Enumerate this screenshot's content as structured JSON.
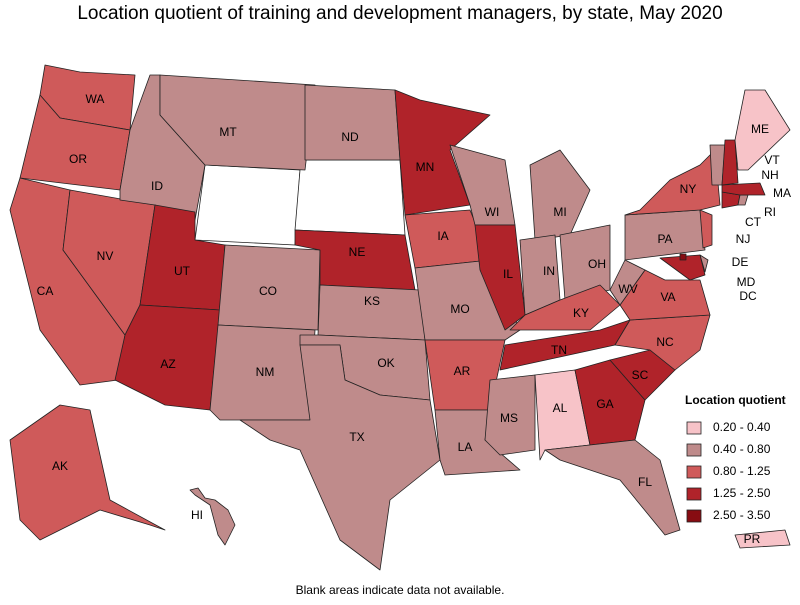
{
  "title": "Location quotient of training and development managers, by state, May 2020",
  "legend": {
    "title": "Location quotient",
    "items": [
      {
        "label": "0.20 - 0.40",
        "color": "#f7c3c8"
      },
      {
        "label": "0.40 - 0.80",
        "color": "#bf8b8b"
      },
      {
        "label": "0.80 - 1.25",
        "color": "#cf5a5a"
      },
      {
        "label": "1.25 - 2.50",
        "color": "#b0232a"
      },
      {
        "label": "2.50 - 3.50",
        "color": "#870c12"
      }
    ]
  },
  "states": [
    {
      "label": "WA",
      "color": "#cf5a5a"
    },
    {
      "label": "OR",
      "color": "#cf5a5a"
    },
    {
      "label": "CA",
      "color": "#cf5a5a"
    },
    {
      "label": "NV",
      "color": "#cf5a5a"
    },
    {
      "label": "ID",
      "color": "#bf8b8b"
    },
    {
      "label": "MT",
      "color": "#bf8b8b"
    },
    {
      "label": "UT",
      "color": "#b0232a"
    },
    {
      "label": "AZ",
      "color": "#b0232a"
    },
    {
      "label": "CO",
      "color": "#bf8b8b"
    },
    {
      "label": "NM",
      "color": "#bf8b8b"
    },
    {
      "label": "ND",
      "color": "#bf8b8b"
    },
    {
      "label": "NE",
      "color": "#b0232a"
    },
    {
      "label": "KS",
      "color": "#bf8b8b"
    },
    {
      "label": "OK",
      "color": "#bf8b8b"
    },
    {
      "label": "TX",
      "color": "#bf8b8b"
    },
    {
      "label": "MN",
      "color": "#b0232a"
    },
    {
      "label": "IA",
      "color": "#cf5a5a"
    },
    {
      "label": "MO",
      "color": "#bf8b8b"
    },
    {
      "label": "AR",
      "color": "#cf5a5a"
    },
    {
      "label": "LA",
      "color": "#bf8b8b"
    },
    {
      "label": "WI",
      "color": "#bf8b8b"
    },
    {
      "label": "IL",
      "color": "#b0232a"
    },
    {
      "label": "MI",
      "color": "#bf8b8b"
    },
    {
      "label": "IN",
      "color": "#bf8b8b"
    },
    {
      "label": "OH",
      "color": "#bf8b8b"
    },
    {
      "label": "KY",
      "color": "#cf5a5a"
    },
    {
      "label": "TN",
      "color": "#b0232a"
    },
    {
      "label": "MS",
      "color": "#bf8b8b"
    },
    {
      "label": "AL",
      "color": "#f7c3c8"
    },
    {
      "label": "GA",
      "color": "#b0232a"
    },
    {
      "label": "FL",
      "color": "#bf8b8b"
    },
    {
      "label": "SC",
      "color": "#b0232a"
    },
    {
      "label": "NC",
      "color": "#cf5a5a"
    },
    {
      "label": "VA",
      "color": "#cf5a5a"
    },
    {
      "label": "WV",
      "color": "#bf8b8b"
    },
    {
      "label": "PA",
      "color": "#bf8b8b"
    },
    {
      "label": "NY",
      "color": "#cf5a5a"
    },
    {
      "label": "NJ",
      "color": "#cf5a5a"
    },
    {
      "label": "DE",
      "color": "#bf8b8b"
    },
    {
      "label": "MD",
      "color": "#b0232a"
    },
    {
      "label": "DC",
      "color": "#870c12"
    },
    {
      "label": "CT",
      "color": "#b0232a"
    },
    {
      "label": "RI",
      "color": "#bf8b8b"
    },
    {
      "label": "MA",
      "color": "#b0232a"
    },
    {
      "label": "VT",
      "color": "#bf8b8b"
    },
    {
      "label": "NH",
      "color": "#b0232a"
    },
    {
      "label": "ME",
      "color": "#f7c3c8"
    },
    {
      "label": "AK",
      "color": "#cf5a5a"
    },
    {
      "label": "HI",
      "color": "#bf8b8b"
    },
    {
      "label": "PR",
      "color": "#f7c3c8"
    }
  ],
  "footnote": "Blank areas indicate data not available."
}
